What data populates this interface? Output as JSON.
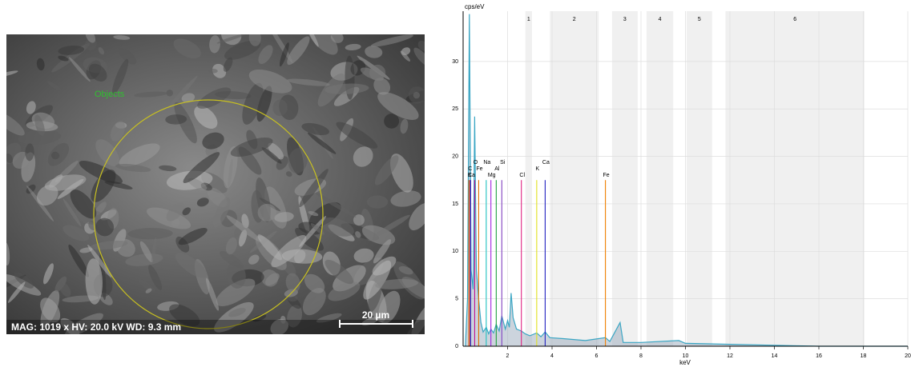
{
  "image": {
    "label": "Objects",
    "caption": "MAG: 1019 x  HV: 20.0 kV  WD: 9.3 mm",
    "scale_bar": "20 µm"
  },
  "chart_data": {
    "type": "line",
    "y_label": "cps/eV",
    "x_label": "keV",
    "color": "#3aa6c4",
    "xlim": [
      0,
      20
    ],
    "ylim": [
      0,
      35.3
    ],
    "xticks": [
      2,
      4,
      6,
      8,
      10,
      12,
      14,
      16,
      18,
      20
    ],
    "yticks": [
      0,
      5,
      10,
      15,
      20,
      25,
      30
    ],
    "grid": true,
    "x": [
      0.1,
      0.2,
      0.28,
      0.36,
      0.45,
      0.52,
      0.6,
      0.7,
      0.8,
      0.9,
      1.04,
      1.15,
      1.25,
      1.37,
      1.49,
      1.62,
      1.74,
      1.9,
      2.0,
      2.08,
      2.16,
      2.25,
      2.4,
      2.62,
      2.8,
      3.0,
      3.31,
      3.5,
      3.69,
      3.9,
      4.5,
      5.5,
      6.4,
      6.6,
      7.06,
      7.2,
      8,
      9.7,
      10,
      12,
      14,
      14.8,
      16,
      20
    ],
    "values": [
      0,
      5,
      35,
      8,
      6,
      24.2,
      8,
      5,
      2.5,
      1.5,
      2,
      1.3,
      1.8,
      1.4,
      2.3,
      1.6,
      3.2,
      1.8,
      2.7,
      2,
      5.6,
      3,
      1.8,
      1.6,
      1.3,
      1.1,
      1.4,
      1,
      1.5,
      0.9,
      0.8,
      0.6,
      0.9,
      0.5,
      2.5,
      0.4,
      0.4,
      0.6,
      0.3,
      0.2,
      0.1,
      0.05,
      0,
      0
    ],
    "regions": [
      {
        "label": "1",
        "range": [
          2.8,
          3.1
        ]
      },
      {
        "label": "2",
        "range": [
          3.9,
          6.1
        ]
      },
      {
        "label": "3",
        "range": [
          6.7,
          7.85
        ]
      },
      {
        "label": "4",
        "range": [
          8.25,
          9.45
        ]
      },
      {
        "label": "5",
        "range": [
          10.05,
          11.2
        ]
      },
      {
        "label": "6",
        "range": [
          11.8,
          18.05
        ]
      }
    ],
    "element_line_height": 17.5,
    "elements": [
      {
        "name": "K",
        "energy": 0.26,
        "color": "#e0a000"
      },
      {
        "name": "C",
        "energy": 0.28,
        "color": "#d42020"
      },
      {
        "name": "O",
        "energy": 0.52,
        "color": "#c01090"
      },
      {
        "name": "Ca",
        "energy": 0.34,
        "color": "#2020c0"
      },
      {
        "name": "Fe",
        "energy": 0.7,
        "color": "#e07000"
      },
      {
        "name": "Na",
        "energy": 1.04,
        "color": "#20c0c0"
      },
      {
        "name": "Mg",
        "energy": 1.25,
        "color": "#a020e0"
      },
      {
        "name": "Al",
        "energy": 1.49,
        "color": "#20a040"
      },
      {
        "name": "Si",
        "energy": 1.74,
        "color": "#8040c0"
      },
      {
        "name": "Cl",
        "energy": 2.62,
        "color": "#e02080"
      },
      {
        "name": "K",
        "energy": 3.31,
        "color": "#e0e020"
      },
      {
        "name": "Ca",
        "energy": 3.69,
        "color": "#2020c0"
      },
      {
        "name": "Fe",
        "energy": 6.4,
        "color": "#f08000"
      }
    ]
  }
}
